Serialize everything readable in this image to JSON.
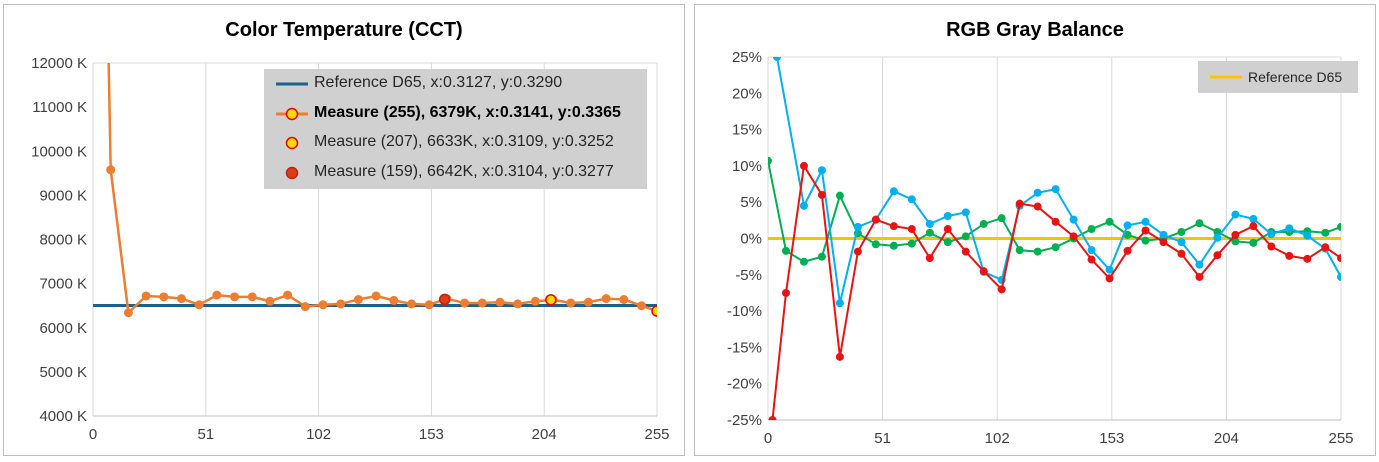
{
  "charts": [
    {
      "id": "cct",
      "title": "Color Temperature (CCT)",
      "legend": [
        {
          "label": "Reference D65, x:0.3127, y:0.3290",
          "style": "line",
          "color": "#1f5f8b",
          "bold": false
        },
        {
          "label": "Measure (255), 6379K, x:0.3141, y:0.3365",
          "style": "line-marker",
          "color": "#ed7d31",
          "marker_fill": "#ffd700",
          "marker_edge": "#e60000",
          "bold": true
        },
        {
          "label": "Measure (207), 6633K, x:0.3109, y:0.3252",
          "style": "marker",
          "marker_fill": "#ffd700",
          "marker_edge": "#e60000",
          "bold": false
        },
        {
          "label": "Measure (159), 6642K, x:0.3104, y:0.3277",
          "style": "marker",
          "marker_fill": "#e03a16",
          "marker_edge": "#b52a0e",
          "bold": false
        }
      ]
    },
    {
      "id": "rgb",
      "title": "RGB Gray Balance",
      "legend": [
        {
          "label": "Reference D65",
          "style": "line",
          "color": "#ffc000",
          "bold": false
        }
      ]
    }
  ],
  "chart_data": [
    {
      "type": "line",
      "title": "Color Temperature (CCT)",
      "xlabel": "",
      "ylabel": "",
      "xlim": [
        0,
        255
      ],
      "ylim": [
        4000,
        12000
      ],
      "x_ticks": [
        0,
        51,
        102,
        153,
        204,
        255
      ],
      "x_tick_labels": [
        "0",
        "51",
        "102",
        "153",
        "204",
        "255"
      ],
      "y_ticks": [
        4000,
        5000,
        6000,
        7000,
        8000,
        9000,
        10000,
        11000,
        12000
      ],
      "y_tick_labels": [
        "4000 K",
        "5000 K",
        "6000 K",
        "7000 K",
        "8000 K",
        "9000 K",
        "10000 K",
        "11000 K",
        "12000 K"
      ],
      "grid": "vertical",
      "legend_position": "top-right",
      "reference": {
        "name": "Reference D65",
        "y": 6504,
        "color": "#1f5f8b"
      },
      "series": [
        {
          "name": "Measure (255)",
          "color": "#ed7d31",
          "x": [
            8,
            16,
            24,
            32,
            40,
            48,
            56,
            64,
            72,
            80,
            88,
            96,
            104,
            112,
            120,
            128,
            136,
            144,
            152,
            160,
            168,
            176,
            184,
            192,
            200,
            208,
            216,
            224,
            232,
            240,
            248,
            255
          ],
          "y": [
            9580,
            6340,
            6720,
            6700,
            6660,
            6520,
            6740,
            6700,
            6700,
            6600,
            6740,
            6480,
            6520,
            6540,
            6640,
            6720,
            6620,
            6540,
            6520,
            6660,
            6560,
            6560,
            6580,
            6540,
            6600,
            6633,
            6560,
            6580,
            6660,
            6640,
            6500,
            6379
          ],
          "y_offscale_start": {
            "x": 7,
            "y": 12000
          }
        }
      ],
      "highlight_points": [
        {
          "name": "Measure (207)",
          "x": 207,
          "y": 6633,
          "fill": "#ffd700",
          "edge": "#e60000"
        },
        {
          "name": "Measure (159)",
          "x": 159,
          "y": 6642,
          "fill": "#e03a16",
          "edge": "#b52a0e"
        },
        {
          "name": "Measure (255)",
          "x": 255,
          "y": 6379,
          "fill": "#ffd700",
          "edge": "#e60000"
        }
      ]
    },
    {
      "type": "line",
      "title": "RGB Gray Balance",
      "xlabel": "",
      "ylabel": "",
      "xlim": [
        0,
        255
      ],
      "ylim": [
        -25,
        25
      ],
      "x_ticks": [
        0,
        51,
        102,
        153,
        204,
        255
      ],
      "x_tick_labels": [
        "0",
        "51",
        "102",
        "153",
        "204",
        "255"
      ],
      "y_ticks": [
        -25,
        -20,
        -15,
        -10,
        -5,
        0,
        5,
        10,
        15,
        20,
        25
      ],
      "y_tick_labels": [
        "-25%",
        "-20%",
        "-15%",
        "-10%",
        "-5%",
        "0%",
        "5%",
        "10%",
        "15%",
        "20%",
        "25%"
      ],
      "grid": "vertical",
      "legend_position": "top-right",
      "reference": {
        "name": "Reference D65",
        "y": 0,
        "color": "#ffc000"
      },
      "series": [
        {
          "color": "#00b050",
          "x": [
            0,
            8,
            16,
            24,
            32,
            40,
            48,
            56,
            64,
            72,
            80,
            88,
            96,
            104,
            112,
            120,
            128,
            136,
            144,
            152,
            160,
            168,
            176,
            184,
            192,
            200,
            208,
            216,
            224,
            232,
            240,
            248,
            255
          ],
          "y": [
            10.7,
            -1.7,
            -3.2,
            -2.5,
            5.9,
            0.7,
            -0.8,
            -1.0,
            -0.7,
            0.8,
            -0.5,
            0.3,
            2.0,
            2.8,
            -1.6,
            -1.8,
            -1.2,
            0.0,
            1.3,
            2.3,
            0.5,
            -0.3,
            0.0,
            0.9,
            2.1,
            0.9,
            -0.4,
            -0.6,
            0.9,
            0.9,
            1.0,
            0.8,
            1.6
          ]
        },
        {
          "color": "#00b0f0",
          "x": [
            4,
            16,
            24,
            32,
            40,
            48,
            56,
            64,
            72,
            80,
            88,
            96,
            104,
            112,
            120,
            128,
            136,
            144,
            152,
            160,
            168,
            176,
            184,
            192,
            200,
            208,
            216,
            224,
            232,
            240,
            248,
            255
          ],
          "y": [
            25,
            4.5,
            9.4,
            -8.9,
            1.6,
            2.6,
            6.5,
            5.4,
            2.0,
            3.1,
            3.6,
            -4.6,
            -5.7,
            4.5,
            6.3,
            6.8,
            2.6,
            -1.6,
            -4.3,
            1.8,
            2.3,
            0.5,
            -0.5,
            -3.6,
            0.1,
            3.3,
            2.7,
            0.6,
            1.4,
            0.4,
            -1.4,
            -5.3
          ]
        },
        {
          "color": "#e81414",
          "x": [
            2,
            8,
            16,
            24,
            32,
            40,
            48,
            56,
            64,
            72,
            80,
            88,
            96,
            104,
            112,
            120,
            128,
            136,
            144,
            152,
            160,
            168,
            176,
            184,
            192,
            200,
            208,
            216,
            224,
            232,
            240,
            248,
            255
          ],
          "y": [
            -25,
            -7.5,
            10.0,
            6.0,
            -16.3,
            -1.8,
            2.6,
            1.7,
            1.3,
            -2.7,
            1.3,
            -1.8,
            -4.5,
            -7.0,
            4.8,
            4.4,
            2.3,
            0.3,
            -2.9,
            -5.5,
            -1.7,
            1.1,
            -0.5,
            -2.1,
            -5.3,
            -2.3,
            0.5,
            1.7,
            -1.1,
            -2.4,
            -2.8,
            -1.2,
            -2.7
          ]
        }
      ]
    }
  ]
}
